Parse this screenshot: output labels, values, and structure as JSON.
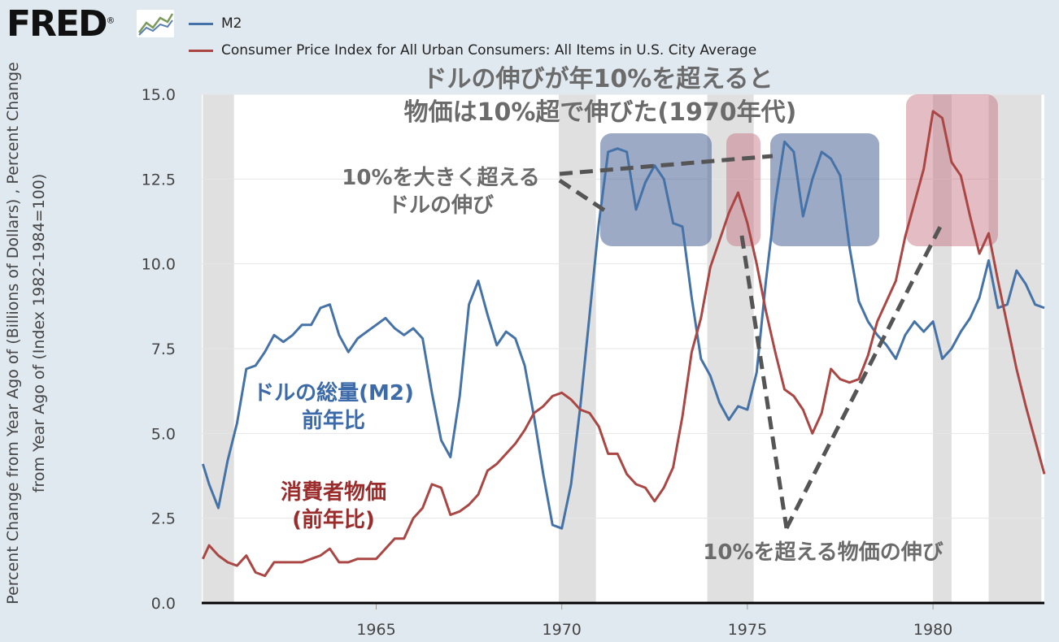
{
  "header": {
    "logo_text": "FRED",
    "logo_mark": "®"
  },
  "legend": {
    "m2_label": "M2",
    "cpi_label": "Consumer Price Index for All Urban Consumers: All Items in U.S. City Average",
    "m2_color": "#4572a7",
    "cpi_color": "#aa4643"
  },
  "annotations": {
    "title_line1": "ドルの伸びが年10%を超えると",
    "title_line2": "物価は10%超で伸びた(1970年代)",
    "dollar_growth_line1": "10%を大きく超える",
    "dollar_growth_line2": "ドルの伸び",
    "m2_label_line1": "ドルの総量(M2)",
    "m2_label_line2": "前年比",
    "cpi_label_line1": "消費者物価",
    "cpi_label_line2": "(前年比)",
    "price_growth": "10%を超える物価の伸び"
  },
  "chart_data": {
    "type": "line",
    "title": "",
    "ylabel": "Percent Change from Year Ago of (Billions of Dollars) , Percent Change from Year Ago of (Index 1982-1984=100)",
    "xlim": [
      1960.3,
      1983
    ],
    "ylim": [
      0,
      15
    ],
    "y_ticks": [
      "0.0",
      "2.5",
      "5.0",
      "7.5",
      "10.0",
      "12.5",
      "15.0"
    ],
    "x_ticks": [
      "1965",
      "1970",
      "1975",
      "1980"
    ],
    "recessions": [
      [
        1960.33,
        1961.17
      ],
      [
        1969.92,
        1970.92
      ],
      [
        1973.92,
        1975.17
      ],
      [
        1980.0,
        1980.5
      ],
      [
        1981.5,
        1982.92
      ]
    ],
    "series": [
      {
        "name": "M2",
        "color": "#4572a7",
        "x": [
          1960.33,
          1960.5,
          1960.75,
          1961.0,
          1961.25,
          1961.5,
          1961.75,
          1962.0,
          1962.25,
          1962.5,
          1962.75,
          1963.0,
          1963.25,
          1963.5,
          1963.75,
          1964.0,
          1964.25,
          1964.5,
          1964.75,
          1965.0,
          1965.25,
          1965.5,
          1965.75,
          1966.0,
          1966.25,
          1966.5,
          1966.75,
          1967.0,
          1967.25,
          1967.5,
          1967.75,
          1968.0,
          1968.25,
          1968.5,
          1968.75,
          1969.0,
          1969.25,
          1969.5,
          1969.75,
          1970.0,
          1970.25,
          1970.5,
          1970.75,
          1971.0,
          1971.25,
          1971.5,
          1971.75,
          1972.0,
          1972.25,
          1972.5,
          1972.75,
          1973.0,
          1973.25,
          1973.5,
          1973.75,
          1974.0,
          1974.25,
          1974.5,
          1974.75,
          1975.0,
          1975.25,
          1975.5,
          1975.75,
          1976.0,
          1976.25,
          1976.5,
          1976.75,
          1977.0,
          1977.25,
          1977.5,
          1977.75,
          1978.0,
          1978.25,
          1978.5,
          1978.75,
          1979.0,
          1979.25,
          1979.5,
          1979.75,
          1980.0,
          1980.25,
          1980.5,
          1980.75,
          1981.0,
          1981.25,
          1981.5,
          1981.75,
          1982.0,
          1982.25,
          1982.5,
          1982.75,
          1983.0
        ],
        "values": [
          4.1,
          3.5,
          2.8,
          4.2,
          5.3,
          6.9,
          7.0,
          7.4,
          7.9,
          7.7,
          7.9,
          8.2,
          8.2,
          8.7,
          8.8,
          7.9,
          7.4,
          7.8,
          8.0,
          8.2,
          8.4,
          8.1,
          7.9,
          8.1,
          7.8,
          6.2,
          4.8,
          4.3,
          6.1,
          8.8,
          9.5,
          8.5,
          7.6,
          8.0,
          7.8,
          7.0,
          5.5,
          3.8,
          2.3,
          2.2,
          3.5,
          5.8,
          8.5,
          11.2,
          13.3,
          13.4,
          13.3,
          11.6,
          12.4,
          12.9,
          12.5,
          11.2,
          11.1,
          9.0,
          7.2,
          6.7,
          5.9,
          5.4,
          5.8,
          5.7,
          6.8,
          9.5,
          11.8,
          13.6,
          13.3,
          11.4,
          12.5,
          13.3,
          13.1,
          12.6,
          10.5,
          8.9,
          8.3,
          7.9,
          7.6,
          7.2,
          7.9,
          8.3,
          8.0,
          8.3,
          7.2,
          7.5,
          8.0,
          8.4,
          9.0,
          10.1,
          8.7,
          8.8,
          9.8,
          9.4,
          8.8,
          8.7
        ]
      },
      {
        "name": "Consumer Price Index for All Urban Consumers: All Items in U.S. City Average",
        "color": "#aa4643",
        "x": [
          1960.33,
          1960.5,
          1960.75,
          1961.0,
          1961.25,
          1961.5,
          1961.75,
          1962.0,
          1962.25,
          1962.5,
          1962.75,
          1963.0,
          1963.25,
          1963.5,
          1963.75,
          1964.0,
          1964.25,
          1964.5,
          1964.75,
          1965.0,
          1965.25,
          1965.5,
          1965.75,
          1966.0,
          1966.25,
          1966.5,
          1966.75,
          1967.0,
          1967.25,
          1967.5,
          1967.75,
          1968.0,
          1968.25,
          1968.5,
          1968.75,
          1969.0,
          1969.25,
          1969.5,
          1969.75,
          1970.0,
          1970.25,
          1970.5,
          1970.75,
          1971.0,
          1971.25,
          1971.5,
          1971.75,
          1972.0,
          1972.25,
          1972.5,
          1972.75,
          1973.0,
          1973.25,
          1973.5,
          1973.75,
          1974.0,
          1974.25,
          1974.5,
          1974.75,
          1975.0,
          1975.25,
          1975.5,
          1975.75,
          1976.0,
          1976.25,
          1976.5,
          1976.75,
          1977.0,
          1977.25,
          1977.5,
          1977.75,
          1978.0,
          1978.25,
          1978.5,
          1978.75,
          1979.0,
          1979.25,
          1979.5,
          1979.75,
          1980.0,
          1980.25,
          1980.5,
          1980.75,
          1981.0,
          1981.25,
          1981.5,
          1981.75,
          1982.0,
          1982.25,
          1982.5,
          1982.75,
          1983.0
        ],
        "values": [
          1.3,
          1.7,
          1.4,
          1.2,
          1.1,
          1.4,
          0.9,
          0.8,
          1.2,
          1.2,
          1.2,
          1.2,
          1.3,
          1.4,
          1.6,
          1.2,
          1.2,
          1.3,
          1.3,
          1.3,
          1.6,
          1.9,
          1.9,
          2.5,
          2.8,
          3.5,
          3.4,
          2.6,
          2.7,
          2.9,
          3.2,
          3.9,
          4.1,
          4.4,
          4.7,
          5.1,
          5.6,
          5.8,
          6.1,
          6.2,
          6.0,
          5.7,
          5.6,
          5.2,
          4.4,
          4.4,
          3.8,
          3.5,
          3.4,
          3.0,
          3.4,
          4.0,
          5.5,
          7.4,
          8.4,
          9.9,
          10.7,
          11.5,
          12.1,
          11.2,
          10.0,
          8.6,
          7.4,
          6.3,
          6.1,
          5.7,
          5.0,
          5.6,
          6.9,
          6.6,
          6.5,
          6.6,
          7.3,
          8.3,
          8.9,
          9.5,
          10.8,
          11.8,
          12.8,
          14.5,
          14.3,
          13.0,
          12.6,
          11.4,
          10.3,
          10.9,
          9.5,
          8.2,
          6.9,
          5.8,
          4.8,
          3.8
        ]
      }
    ]
  }
}
